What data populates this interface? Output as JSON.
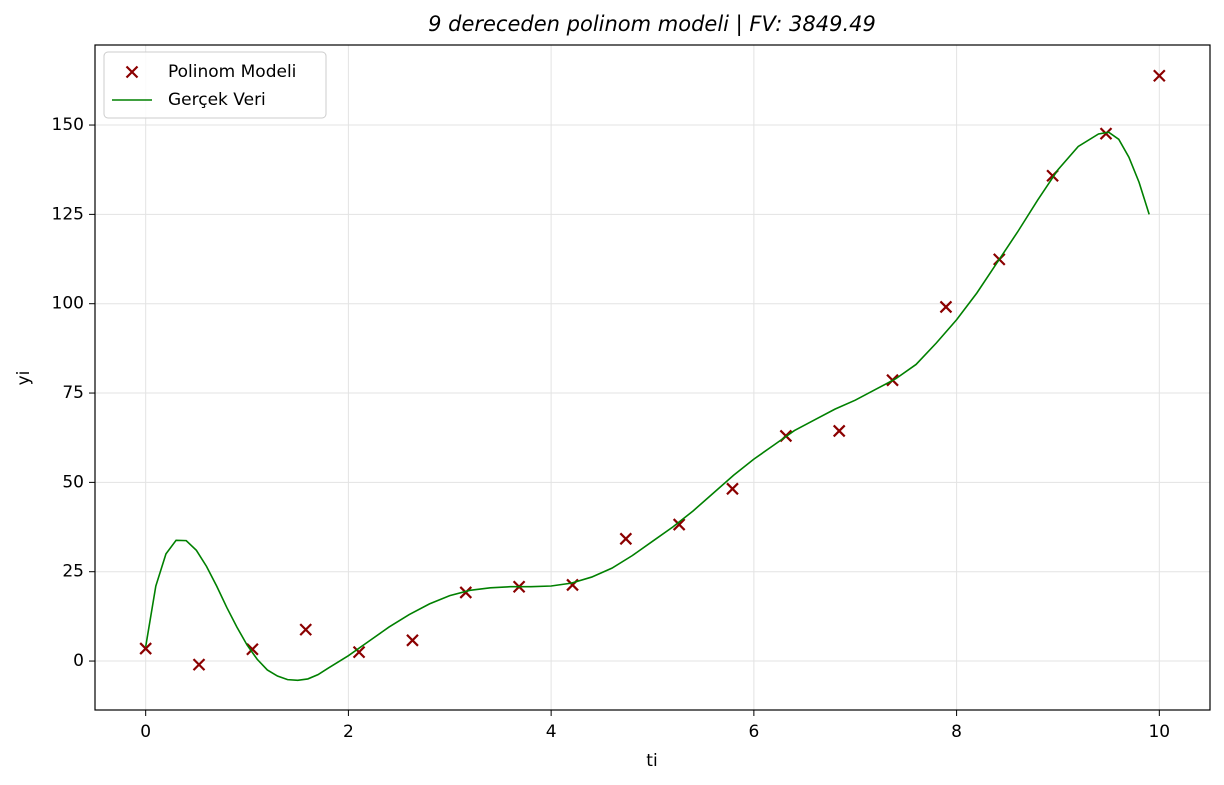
{
  "chart_data": {
    "type": "scatter",
    "title": "9 dereceden polinom modeli | FV: 3849.49",
    "x_label": "ti",
    "y_label": "yi",
    "xlim": [
      -0.5,
      10.5
    ],
    "ylim": [
      -13.7,
      172.4
    ],
    "xticks": [
      0,
      2,
      4,
      6,
      8,
      10
    ],
    "yticks": [
      0,
      25,
      50,
      75,
      100,
      125,
      150
    ],
    "grid": true,
    "legend": "upper left",
    "series": [
      {
        "name": "Polinom Modeli",
        "type": "scatter",
        "color": "#8b0000",
        "x": [
          0,
          0.526,
          1.053,
          1.579,
          2.105,
          2.632,
          3.158,
          3.684,
          4.211,
          4.737,
          5.263,
          5.789,
          6.316,
          6.842,
          7.368,
          7.895,
          8.421,
          8.947,
          9.474,
          10
        ],
        "values": [
          3.5,
          -1,
          3.3,
          8.8,
          2.5,
          5.8,
          19.2,
          20.8,
          21.3,
          34.2,
          38.2,
          48.2,
          63,
          64.4,
          78.6,
          99.1,
          112.4,
          135.8,
          147.6,
          163.8
        ]
      },
      {
        "name": "Gerçek Veri",
        "type": "line",
        "color": "#008000",
        "x": [
          0,
          0.1,
          0.2,
          0.3,
          0.4,
          0.5,
          0.6,
          0.7,
          0.8,
          0.9,
          1.0,
          1.1,
          1.2,
          1.3,
          1.4,
          1.5,
          1.6,
          1.7,
          1.8,
          2.0,
          2.2,
          2.4,
          2.6,
          2.8,
          3.0,
          3.2,
          3.4,
          3.6,
          3.8,
          4.0,
          4.2,
          4.4,
          4.6,
          4.8,
          5.0,
          5.2,
          5.4,
          5.6,
          5.8,
          6.0,
          6.2,
          6.4,
          6.6,
          6.8,
          7.0,
          7.2,
          7.4,
          7.6,
          7.8,
          8.0,
          8.2,
          8.4,
          8.6,
          8.8,
          9.0,
          9.2,
          9.4,
          9.5,
          9.6,
          9.7,
          9.8,
          9.9
        ],
        "values": [
          4,
          21,
          30,
          33.8,
          33.7,
          31,
          26.5,
          21,
          15,
          9.5,
          4.5,
          0.5,
          -2.5,
          -4.2,
          -5.2,
          -5.4,
          -5,
          -3.8,
          -2,
          1.5,
          5.5,
          9.5,
          13,
          16,
          18.3,
          19.8,
          20.5,
          20.8,
          20.8,
          21,
          21.8,
          23.5,
          26,
          29.5,
          33.5,
          37.5,
          42,
          47,
          52,
          56.5,
          60.5,
          64.5,
          67.5,
          70.5,
          73,
          76,
          79,
          83,
          89,
          95.5,
          103,
          111.5,
          120,
          129,
          137.5,
          144,
          147.5,
          148,
          146,
          141,
          134,
          125
        ]
      }
    ]
  }
}
